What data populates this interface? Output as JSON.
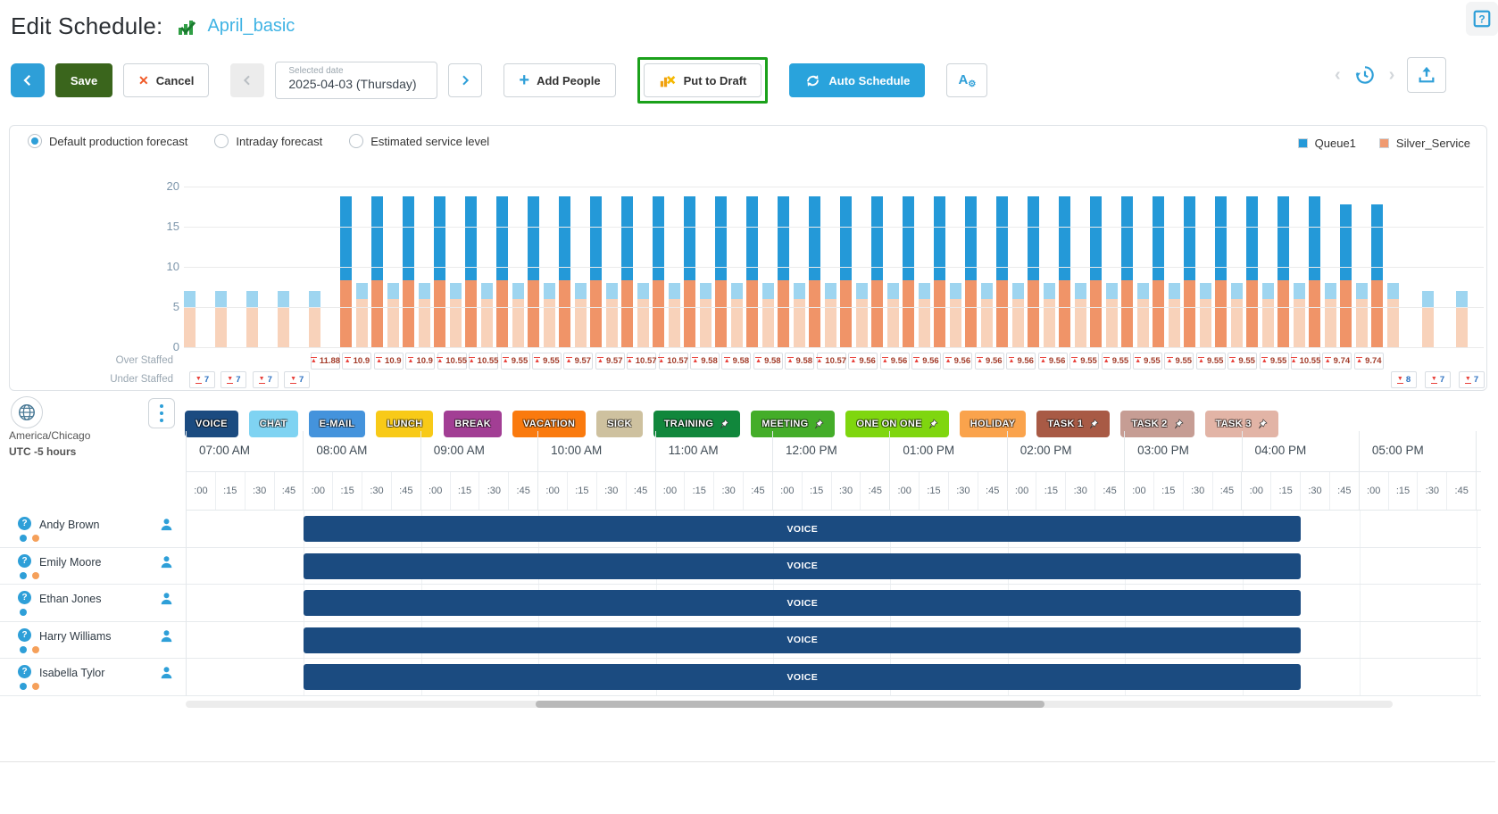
{
  "header": {
    "title": "Edit Schedule:",
    "schedule_name": "April_basic"
  },
  "toolbar": {
    "save": "Save",
    "cancel": "Cancel",
    "selected_date_label": "Selected date",
    "selected_date_value": "2025-04-03 (Thursday)",
    "add_people": "Add People",
    "put_to_draft": "Put to Draft",
    "auto_schedule": "Auto Schedule",
    "highlight_color": "#1ba11b",
    "accent_color": "#2e9fd8"
  },
  "forecast": {
    "options": [
      "Default production forecast",
      "Intraday forecast",
      "Estimated service level"
    ],
    "selected_option": "Default production forecast",
    "legend": [
      {
        "label": "Queue1",
        "color": "#2499d8"
      },
      {
        "label": "Silver_Service",
        "color": "#f09a70"
      }
    ]
  },
  "chart_data": {
    "type": "bar",
    "title": "",
    "xlabel": "",
    "ylabel": "",
    "ylim": [
      0,
      20
    ],
    "yticks": [
      20,
      15,
      10,
      5,
      0
    ],
    "grid": true,
    "legend_position": "top-right",
    "series": [
      {
        "name": "Queue1",
        "color_dark": "#2499d8",
        "color_light": "#9ed5f0"
      },
      {
        "name": "Silver_Service",
        "color_dark": "#f09468",
        "color_light": "#f8d2ba"
      }
    ],
    "bars": {
      "left_light": {
        "count": 5,
        "silver_service": 5,
        "queue_total": 7
      },
      "pairs": {
        "count": 34,
        "dark_silver_service": 8.3,
        "dark_queue_total": 18.8,
        "dark_queue_total_last2": 17.8,
        "light_silver_service": 6,
        "light_queue_total": 8
      },
      "right_light": {
        "count": 2,
        "silver_service": 5,
        "queue_total": 7
      }
    }
  },
  "staffing": {
    "over_label": "Over Staffed",
    "under_label": "Under Staffed",
    "over_values": [
      11.88,
      10.9,
      10.9,
      10.9,
      10.55,
      10.55,
      9.55,
      9.55,
      9.57,
      9.57,
      10.57,
      10.57,
      9.58,
      9.58,
      9.58,
      9.58,
      10.57,
      9.56,
      9.56,
      9.56,
      9.56,
      9.56,
      9.56,
      9.56,
      9.55,
      9.55,
      9.55,
      9.55,
      9.55,
      9.55,
      9.55,
      10.55,
      9.74,
      9.74
    ],
    "under_left_values": [
      7,
      7,
      7,
      7
    ],
    "under_right_values": [
      8,
      7,
      7
    ]
  },
  "schedule": {
    "timezone_region": "America/Chicago",
    "timezone_offset": "UTC -5 hours",
    "palette": [
      {
        "label": "VOICE",
        "color": "#1b4b80",
        "pinned": false
      },
      {
        "label": "CHAT",
        "color": "#7fd3f2",
        "pinned": false
      },
      {
        "label": "E-MAIL",
        "color": "#4493dc",
        "pinned": false
      },
      {
        "label": "LUNCH",
        "color": "#f8ca18",
        "pinned": false
      },
      {
        "label": "BREAK",
        "color": "#a23e94",
        "pinned": false
      },
      {
        "label": "VACATION",
        "color": "#fa7a0e",
        "pinned": false
      },
      {
        "label": "SICK",
        "color": "#cec19f",
        "pinned": false
      },
      {
        "label": "TRAINING",
        "color": "#11873c",
        "pinned": true
      },
      {
        "label": "MEETING",
        "color": "#44ad29",
        "pinned": true
      },
      {
        "label": "ONE ON ONE",
        "color": "#7fd60f",
        "pinned": true
      },
      {
        "label": "HOLIDAY",
        "color": "#faa34c",
        "pinned": false
      },
      {
        "label": "TASK 1",
        "color": "#a85a45",
        "pinned": true
      },
      {
        "label": "TASK 2",
        "color": "#c69d94",
        "pinned": true
      },
      {
        "label": "TASK 3",
        "color": "#e2b4a6",
        "pinned": true
      }
    ],
    "hours": [
      "07:00 AM",
      "08:00 AM",
      "09:00 AM",
      "10:00 AM",
      "11:00 AM",
      "12:00 PM",
      "01:00 PM",
      "02:00 PM",
      "03:00 PM",
      "04:00 PM",
      "05:00 PM"
    ],
    "quarters": [
      ":00",
      ":15",
      ":30",
      ":45"
    ],
    "employees": [
      {
        "name": "Andy Brown",
        "dots": [
          "#2e9fd8",
          "#f5a05a"
        ]
      },
      {
        "name": "Emily Moore",
        "dots": [
          "#2e9fd8",
          "#f5a05a"
        ]
      },
      {
        "name": "Ethan Jones",
        "dots": [
          "#2e9fd8"
        ]
      },
      {
        "name": "Harry Williams",
        "dots": [
          "#2e9fd8",
          "#f5a05a"
        ]
      },
      {
        "name": "Isabella Tylor",
        "dots": [
          "#2e9fd8",
          "#f5a05a"
        ]
      }
    ],
    "shift_label": "VOICE",
    "shift_color": "#1b4b80",
    "shift_start": "08:00 AM",
    "shift_end": "04:30 PM"
  }
}
